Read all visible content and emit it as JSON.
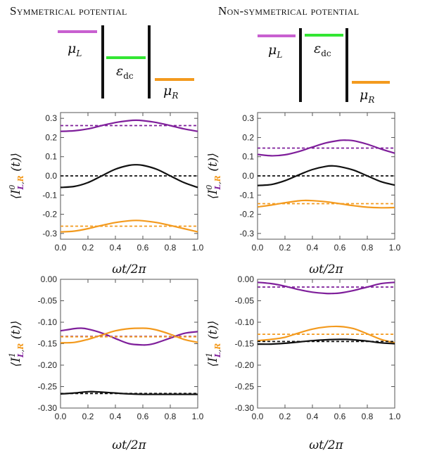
{
  "titles": {
    "left": "Symmetrical potential",
    "right": "Non-symmetrical potential"
  },
  "diagram_labels": {
    "mu_l": "μ",
    "mu_l_sub": "L",
    "eps": "ε",
    "eps_sub": "dc",
    "mu_r": "μ",
    "mu_r_sub": "R"
  },
  "colors": {
    "purple": "#7f1f9b",
    "orange": "#f39a1e",
    "black": "#111111",
    "green": "#33e633",
    "violet_level": "#c860d0",
    "orange_level": "#f39a1e"
  },
  "chart_data": [
    {
      "type": "line",
      "id": "sym-I0",
      "xlabel": "ωt/2π",
      "ylabel": "⟨I⁰_{L,R}(t)⟩",
      "xlim": [
        0,
        1
      ],
      "ylim": [
        -0.33,
        0.33
      ],
      "xticks": [
        "0.0",
        "0.2",
        "0.4",
        "0.6",
        "0.8",
        "1.0"
      ],
      "yticks": [
        "-0.3",
        "-0.2",
        "-0.1",
        "0.0",
        "0.1",
        "0.2",
        "0.3"
      ],
      "ytick_values": [
        -0.3,
        -0.2,
        -0.1,
        0.0,
        0.1,
        0.2,
        0.3
      ],
      "series": [
        {
          "color": "purple",
          "x": [
            0,
            0.1,
            0.2,
            0.3,
            0.4,
            0.5,
            0.55,
            0.6,
            0.7,
            0.8,
            0.9,
            1.0
          ],
          "y": [
            0.232,
            0.235,
            0.245,
            0.262,
            0.278,
            0.288,
            0.29,
            0.288,
            0.278,
            0.262,
            0.245,
            0.232
          ]
        },
        {
          "color": "black",
          "x": [
            0,
            0.1,
            0.2,
            0.3,
            0.4,
            0.5,
            0.55,
            0.6,
            0.7,
            0.8,
            0.9,
            1.0
          ],
          "y": [
            -0.06,
            -0.055,
            -0.035,
            0.0,
            0.035,
            0.055,
            0.058,
            0.055,
            0.035,
            0.0,
            -0.035,
            -0.06
          ]
        },
        {
          "color": "orange",
          "x": [
            0,
            0.1,
            0.2,
            0.3,
            0.4,
            0.5,
            0.55,
            0.6,
            0.7,
            0.8,
            0.9,
            1.0
          ],
          "y": [
            -0.292,
            -0.288,
            -0.275,
            -0.258,
            -0.243,
            -0.234,
            -0.232,
            -0.234,
            -0.243,
            -0.258,
            -0.275,
            -0.292
          ]
        },
        {
          "color": "purple",
          "dashed": true,
          "x": [
            0,
            1
          ],
          "y": [
            0.262,
            0.262
          ]
        },
        {
          "color": "black",
          "dashed": true,
          "x": [
            0,
            1
          ],
          "y": [
            0.0,
            0.0
          ]
        },
        {
          "color": "orange",
          "dashed": true,
          "x": [
            0,
            1
          ],
          "y": [
            -0.262,
            -0.262
          ]
        }
      ]
    },
    {
      "type": "line",
      "id": "nonsym-I0",
      "xlabel": "ωt/2π",
      "ylabel": "⟨I⁰_{L,R}(t)⟩",
      "xlim": [
        0,
        1
      ],
      "ylim": [
        -0.33,
        0.33
      ],
      "xticks": [
        "0.0",
        "0.2",
        "0.4",
        "0.6",
        "0.8",
        "1.0"
      ],
      "yticks": [
        "-0.3",
        "-0.2",
        "-0.1",
        "0.0",
        "0.1",
        "0.2",
        "0.3"
      ],
      "ytick_values": [
        -0.3,
        -0.2,
        -0.1,
        0.0,
        0.1,
        0.2,
        0.3
      ],
      "series": [
        {
          "color": "purple",
          "x": [
            0,
            0.1,
            0.2,
            0.3,
            0.4,
            0.5,
            0.6,
            0.65,
            0.7,
            0.8,
            0.9,
            1.0
          ],
          "y": [
            0.112,
            0.105,
            0.11,
            0.127,
            0.15,
            0.172,
            0.185,
            0.186,
            0.183,
            0.165,
            0.14,
            0.118
          ]
        },
        {
          "color": "black",
          "x": [
            0,
            0.1,
            0.2,
            0.3,
            0.4,
            0.5,
            0.55,
            0.6,
            0.7,
            0.8,
            0.9,
            1.0
          ],
          "y": [
            -0.05,
            -0.045,
            -0.025,
            0.005,
            0.033,
            0.05,
            0.052,
            0.048,
            0.03,
            0.0,
            -0.03,
            -0.048
          ]
        },
        {
          "color": "orange",
          "x": [
            0,
            0.1,
            0.2,
            0.3,
            0.35,
            0.4,
            0.5,
            0.6,
            0.7,
            0.8,
            0.9,
            1.0
          ],
          "y": [
            -0.162,
            -0.152,
            -0.14,
            -0.13,
            -0.128,
            -0.129,
            -0.135,
            -0.145,
            -0.155,
            -0.163,
            -0.166,
            -0.165
          ]
        },
        {
          "color": "purple",
          "dashed": true,
          "x": [
            0,
            1
          ],
          "y": [
            0.145,
            0.145
          ]
        },
        {
          "color": "black",
          "dashed": true,
          "x": [
            0,
            1
          ],
          "y": [
            0.0,
            0.0
          ]
        },
        {
          "color": "orange",
          "dashed": true,
          "x": [
            0,
            1
          ],
          "y": [
            -0.145,
            -0.145
          ]
        }
      ]
    },
    {
      "type": "line",
      "id": "sym-I1",
      "xlabel": "ωt/2π",
      "ylabel": "⟨I¹_{L,R}(t)⟩",
      "xlim": [
        0,
        1
      ],
      "ylim": [
        -0.3,
        0.0
      ],
      "xticks": [
        "0.0",
        "0.2",
        "0.4",
        "0.6",
        "0.8",
        "1.0"
      ],
      "yticks": [
        "0.00",
        "-0.05",
        "-0.10",
        "-0.15",
        "-0.20",
        "-0.25",
        "-0.30"
      ],
      "ytick_values": [
        0.0,
        -0.05,
        -0.1,
        -0.15,
        -0.2,
        -0.25,
        -0.3
      ],
      "series": [
        {
          "color": "purple",
          "x": [
            0,
            0.1,
            0.15,
            0.2,
            0.3,
            0.4,
            0.5,
            0.6,
            0.65,
            0.7,
            0.8,
            0.9,
            1.0
          ],
          "y": [
            -0.12,
            -0.115,
            -0.114,
            -0.116,
            -0.125,
            -0.138,
            -0.15,
            -0.153,
            -0.152,
            -0.148,
            -0.137,
            -0.126,
            -0.122
          ]
        },
        {
          "color": "orange",
          "x": [
            0,
            0.1,
            0.2,
            0.3,
            0.4,
            0.5,
            0.6,
            0.65,
            0.7,
            0.8,
            0.9,
            1.0
          ],
          "y": [
            -0.148,
            -0.147,
            -0.14,
            -0.13,
            -0.12,
            -0.115,
            -0.114,
            -0.115,
            -0.118,
            -0.128,
            -0.14,
            -0.147
          ]
        },
        {
          "color": "black",
          "x": [
            0,
            0.1,
            0.2,
            0.25,
            0.3,
            0.4,
            0.5,
            0.6,
            0.7,
            0.8,
            0.9,
            1.0
          ],
          "y": [
            -0.267,
            -0.265,
            -0.262,
            -0.262,
            -0.263,
            -0.265,
            -0.267,
            -0.268,
            -0.268,
            -0.268,
            -0.268,
            -0.268
          ]
        },
        {
          "color": "purple",
          "dashed": true,
          "x": [
            0,
            1
          ],
          "y": [
            -0.133,
            -0.133
          ]
        },
        {
          "color": "orange",
          "dashed": true,
          "x": [
            0,
            1
          ],
          "y": [
            -0.134,
            -0.134
          ]
        },
        {
          "color": "black",
          "dashed": true,
          "x": [
            0,
            1
          ],
          "y": [
            -0.266,
            -0.266
          ]
        }
      ]
    },
    {
      "type": "line",
      "id": "nonsym-I1",
      "xlabel": "ωt/2π",
      "ylabel": "⟨I¹_{L,R}(t)⟩",
      "xlim": [
        0,
        1
      ],
      "ylim": [
        -0.3,
        0.0
      ],
      "xticks": [
        "0.0",
        "0.2",
        "0.4",
        "0.6",
        "0.8",
        "1.0"
      ],
      "yticks": [
        "0.00",
        "-0.05",
        "-0.10",
        "-0.15",
        "-0.20",
        "-0.25",
        "-0.30"
      ],
      "ytick_values": [
        0.0,
        -0.05,
        -0.1,
        -0.15,
        -0.2,
        -0.25,
        -0.3
      ],
      "series": [
        {
          "color": "purple",
          "x": [
            0,
            0.1,
            0.2,
            0.3,
            0.4,
            0.5,
            0.55,
            0.6,
            0.7,
            0.8,
            0.9,
            1.0
          ],
          "y": [
            -0.007,
            -0.01,
            -0.016,
            -0.024,
            -0.03,
            -0.033,
            -0.033,
            -0.032,
            -0.026,
            -0.018,
            -0.01,
            -0.007
          ]
        },
        {
          "color": "orange",
          "x": [
            0,
            0.1,
            0.2,
            0.3,
            0.4,
            0.5,
            0.6,
            0.7,
            0.8,
            0.9,
            1.0
          ],
          "y": [
            -0.143,
            -0.14,
            -0.135,
            -0.125,
            -0.116,
            -0.111,
            -0.11,
            -0.115,
            -0.127,
            -0.14,
            -0.148
          ]
        },
        {
          "color": "black",
          "x": [
            0,
            0.1,
            0.2,
            0.3,
            0.4,
            0.5,
            0.6,
            0.65,
            0.7,
            0.8,
            0.9,
            1.0
          ],
          "y": [
            -0.151,
            -0.151,
            -0.149,
            -0.146,
            -0.143,
            -0.141,
            -0.14,
            -0.14,
            -0.141,
            -0.144,
            -0.148,
            -0.15
          ]
        },
        {
          "color": "purple",
          "dashed": true,
          "x": [
            0,
            1
          ],
          "y": [
            -0.018,
            -0.018
          ]
        },
        {
          "color": "orange",
          "dashed": true,
          "x": [
            0,
            1
          ],
          "y": [
            -0.128,
            -0.128
          ]
        },
        {
          "color": "black",
          "dashed": true,
          "x": [
            0,
            1
          ],
          "y": [
            -0.145,
            -0.145
          ]
        }
      ]
    }
  ]
}
